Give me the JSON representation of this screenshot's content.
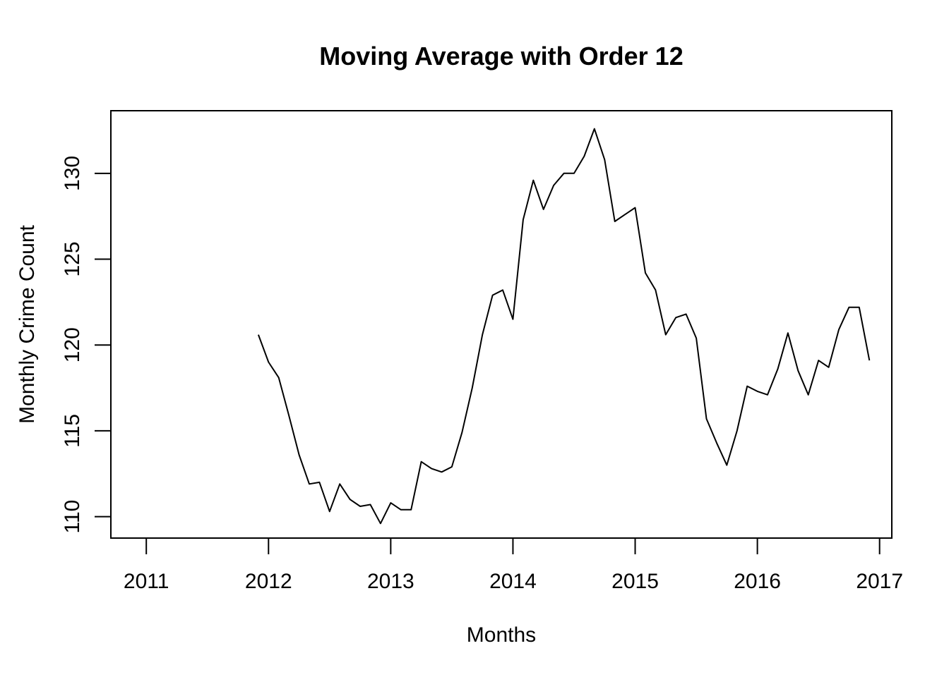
{
  "chart_data": {
    "type": "line",
    "title": "Moving Average with Order 12",
    "xlabel": "Months",
    "ylabel": "Monthly Crime Count",
    "xlim": [
      2010.71,
      2017.1
    ],
    "ylim": [
      108.75,
      133.65
    ],
    "x_ticks": [
      2011,
      2012,
      2013,
      2014,
      2015,
      2016,
      2017
    ],
    "y_ticks": [
      110,
      115,
      120,
      125,
      130
    ],
    "x_tick_labels": [
      "2011",
      "2012",
      "2013",
      "2014",
      "2015",
      "2016",
      "2017"
    ],
    "y_tick_labels": [
      "110",
      "115",
      "120",
      "125",
      "130"
    ],
    "grid": false,
    "box": true,
    "series_color": "#000000",
    "x_start": 2011.9167,
    "x_step": 0.083333,
    "values": [
      120.6,
      119.0,
      118.1,
      115.9,
      113.6,
      111.9,
      112.0,
      110.3,
      111.9,
      111.0,
      110.6,
      110.7,
      109.6,
      110.8,
      110.4,
      110.4,
      113.2,
      112.8,
      112.6,
      112.9,
      114.9,
      117.5,
      120.6,
      122.9,
      123.2,
      121.5,
      127.3,
      129.6,
      127.9,
      129.3,
      130.0,
      130.0,
      131.0,
      132.6,
      130.8,
      127.2,
      127.6,
      128.0,
      124.2,
      123.2,
      120.6,
      121.6,
      121.8,
      120.4,
      115.7,
      114.3,
      113.0,
      115.0,
      117.6,
      117.3,
      117.1,
      118.6,
      120.7,
      118.5,
      117.1,
      119.1,
      118.7,
      120.9,
      122.2,
      122.2,
      119.1
    ]
  }
}
